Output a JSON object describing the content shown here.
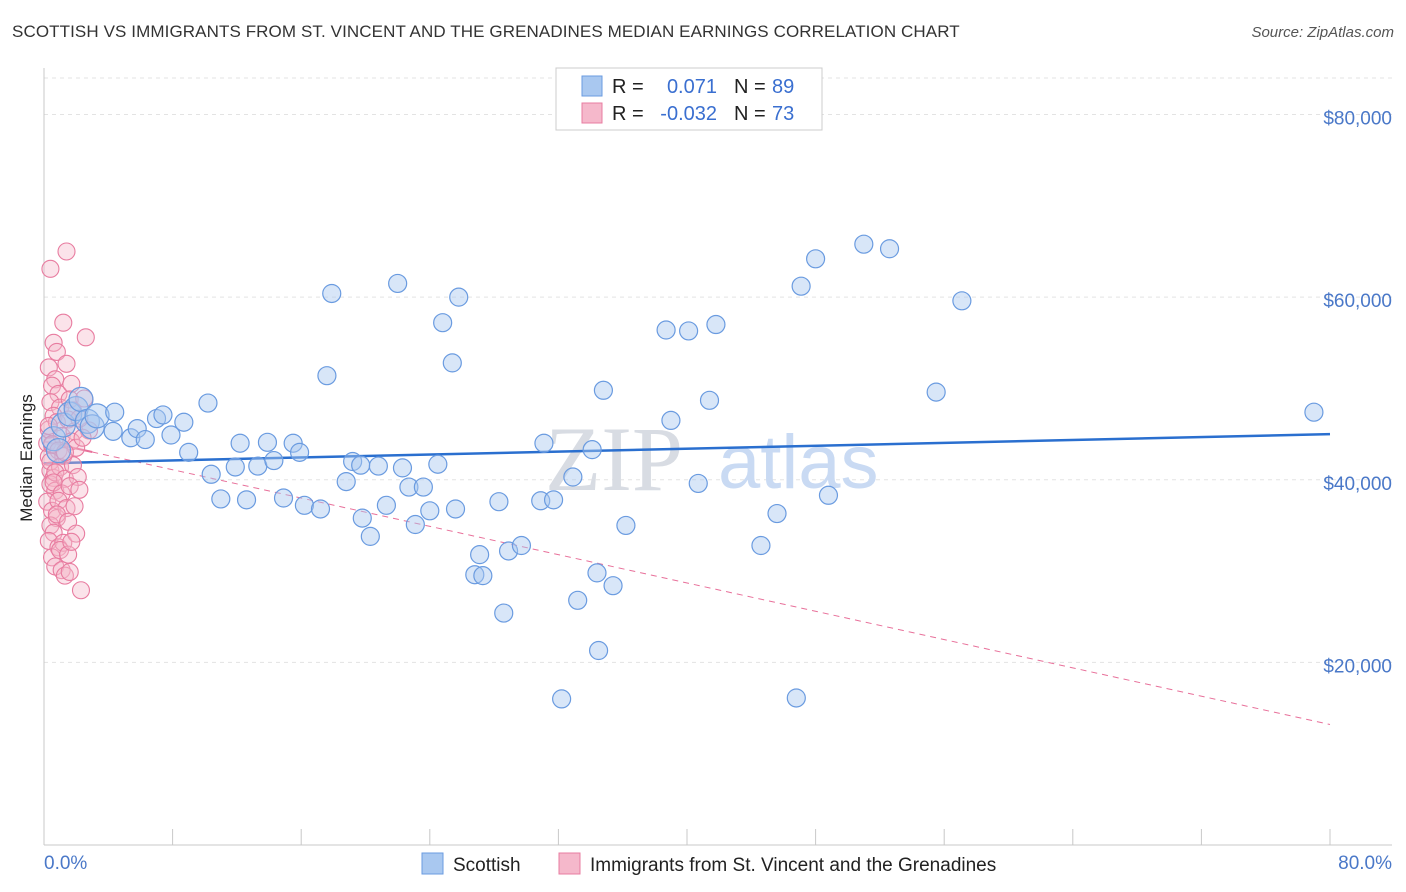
{
  "title": "SCOTTISH VS IMMIGRANTS FROM ST. VINCENT AND THE GRENADINES MEDIAN EARNINGS CORRELATION CHART",
  "source": "Source: ZipAtlas.com",
  "watermark": {
    "zip": "ZIP",
    "atlas": "atlas"
  },
  "legend": {
    "rows": [
      {
        "r_label": "R =",
        "r_value": "0.071",
        "n_label": "N =",
        "n_value": "89",
        "color": "#a9c8f0"
      },
      {
        "r_label": "R =",
        "r_value": "-0.032",
        "n_label": "N =",
        "n_value": "73",
        "color": "#f5b8cb"
      }
    ]
  },
  "bottom_legend": [
    {
      "label": "Scottish",
      "color": "#a9c8f0"
    },
    {
      "label": "Immigrants from St. Vincent and the Grenadines",
      "color": "#f5b8cb"
    }
  ],
  "chart_data": {
    "type": "scatter",
    "title": "SCOTTISH VS IMMIGRANTS FROM ST. VINCENT AND THE GRENADINES MEDIAN EARNINGS CORRELATION CHART",
    "ylabel": "Median Earnings",
    "xlabel": "",
    "xlim": [
      0,
      80
    ],
    "ylim": [
      0,
      84000
    ],
    "x_tick_labels": [
      "0.0%",
      "80.0%"
    ],
    "y_ticks": [
      {
        "value": 20000,
        "label": "$20,000"
      },
      {
        "value": 40000,
        "label": "$40,000"
      },
      {
        "value": 60000,
        "label": "$60,000"
      },
      {
        "value": 80000,
        "label": "$80,000"
      }
    ],
    "grid": true,
    "colors": {
      "scottish": "#6a9be0",
      "scottish_fill": "#a9c8f0",
      "svg": "#e87ca0",
      "svg_fill": "#f5b8cb",
      "trend_blue": "#2a6fcf",
      "trend_pink": "#e8709a",
      "tick_label": "#4a78c8"
    },
    "series": [
      {
        "name": "Scottish",
        "trend": {
          "x": [
            0,
            80
          ],
          "y": [
            41800,
            45000
          ]
        },
        "points": [
          [
            0.6,
            44500
          ],
          [
            0.9,
            43200
          ],
          [
            1.2,
            46000
          ],
          [
            1.6,
            47200
          ],
          [
            2.0,
            47800
          ],
          [
            2.3,
            48800
          ],
          [
            2.7,
            46400
          ],
          [
            3.0,
            45800
          ],
          [
            3.3,
            47000
          ],
          [
            4.4,
            47400
          ],
          [
            4.3,
            45300
          ],
          [
            5.4,
            44600
          ],
          [
            5.8,
            45600
          ],
          [
            6.3,
            44400
          ],
          [
            7.0,
            46700
          ],
          [
            7.9,
            44900
          ],
          [
            8.7,
            46300
          ],
          [
            7.4,
            47100
          ],
          [
            9.0,
            43000
          ],
          [
            10.4,
            40600
          ],
          [
            10.2,
            48400
          ],
          [
            11.0,
            37900
          ],
          [
            11.9,
            41400
          ],
          [
            12.6,
            37800
          ],
          [
            12.2,
            44000
          ],
          [
            13.3,
            41500
          ],
          [
            13.9,
            44100
          ],
          [
            14.3,
            42100
          ],
          [
            14.9,
            38000
          ],
          [
            15.5,
            44000
          ],
          [
            15.9,
            43000
          ],
          [
            16.2,
            37200
          ],
          [
            17.2,
            36800
          ],
          [
            17.6,
            51400
          ],
          [
            17.9,
            60400
          ],
          [
            18.8,
            39800
          ],
          [
            19.2,
            42000
          ],
          [
            19.8,
            35800
          ],
          [
            19.7,
            41600
          ],
          [
            20.3,
            33800
          ],
          [
            20.8,
            41500
          ],
          [
            21.3,
            37200
          ],
          [
            22.3,
            41300
          ],
          [
            22.0,
            61500
          ],
          [
            22.7,
            39200
          ],
          [
            23.1,
            35100
          ],
          [
            23.6,
            39200
          ],
          [
            24.0,
            36600
          ],
          [
            24.5,
            41700
          ],
          [
            24.8,
            57200
          ],
          [
            25.4,
            52800
          ],
          [
            25.6,
            36800
          ],
          [
            25.8,
            60000
          ],
          [
            26.8,
            29600
          ],
          [
            27.1,
            31800
          ],
          [
            27.3,
            29500
          ],
          [
            28.3,
            37600
          ],
          [
            28.6,
            25400
          ],
          [
            28.9,
            32200
          ],
          [
            29.7,
            32800
          ],
          [
            30.9,
            37700
          ],
          [
            31.1,
            44000
          ],
          [
            31.7,
            37800
          ],
          [
            32.9,
            40300
          ],
          [
            32.2,
            16000
          ],
          [
            33.2,
            26800
          ],
          [
            34.1,
            43300
          ],
          [
            34.4,
            29800
          ],
          [
            34.5,
            21300
          ],
          [
            34.8,
            49800
          ],
          [
            35.4,
            28400
          ],
          [
            36.2,
            35000
          ],
          [
            38.7,
            56400
          ],
          [
            39.0,
            46500
          ],
          [
            40.1,
            56300
          ],
          [
            40.7,
            39600
          ],
          [
            41.4,
            48700
          ],
          [
            41.8,
            57000
          ],
          [
            44.6,
            32800
          ],
          [
            45.6,
            36300
          ],
          [
            46.8,
            16100
          ],
          [
            47.1,
            61200
          ],
          [
            48.0,
            64200
          ],
          [
            48.8,
            38300
          ],
          [
            51.0,
            65800
          ],
          [
            52.6,
            65300
          ],
          [
            55.5,
            49600
          ],
          [
            57.1,
            59600
          ],
          [
            79.0,
            47400
          ]
        ]
      },
      {
        "name": "Immigrants from St. Vincent and the Grenadines",
        "trend": {
          "x": [
            0,
            80
          ],
          "y": [
            44200,
            13200
          ]
        },
        "points": [
          [
            0.2,
            44000
          ],
          [
            0.3,
            42500
          ],
          [
            0.4,
            41000
          ],
          [
            0.5,
            43800
          ],
          [
            0.3,
            45500
          ],
          [
            0.6,
            40200
          ],
          [
            0.4,
            39500
          ],
          [
            0.7,
            38800
          ],
          [
            0.2,
            37600
          ],
          [
            0.5,
            36600
          ],
          [
            0.8,
            35800
          ],
          [
            0.4,
            35000
          ],
          [
            0.6,
            34200
          ],
          [
            0.3,
            33300
          ],
          [
            0.9,
            32600
          ],
          [
            0.5,
            31500
          ],
          [
            0.7,
            30500
          ],
          [
            0.4,
            63100
          ],
          [
            0.6,
            55000
          ],
          [
            0.8,
            54000
          ],
          [
            0.3,
            52300
          ],
          [
            0.7,
            51000
          ],
          [
            0.5,
            50300
          ],
          [
            0.9,
            49400
          ],
          [
            0.4,
            48500
          ],
          [
            1.0,
            47900
          ],
          [
            0.6,
            47000
          ],
          [
            0.8,
            46300
          ],
          [
            0.3,
            45900
          ],
          [
            1.1,
            44800
          ],
          [
            0.5,
            43900
          ],
          [
            0.9,
            43200
          ],
          [
            1.2,
            42600
          ],
          [
            0.4,
            42000
          ],
          [
            1.0,
            41400
          ],
          [
            0.7,
            40800
          ],
          [
            1.3,
            40100
          ],
          [
            0.6,
            39700
          ],
          [
            1.1,
            38500
          ],
          [
            0.9,
            37700
          ],
          [
            1.4,
            36900
          ],
          [
            0.8,
            36200
          ],
          [
            1.2,
            33100
          ],
          [
            1.0,
            32300
          ],
          [
            1.5,
            31800
          ],
          [
            1.1,
            30100
          ],
          [
            1.3,
            29500
          ],
          [
            1.6,
            29900
          ],
          [
            1.2,
            57200
          ],
          [
            1.4,
            52700
          ],
          [
            1.7,
            50500
          ],
          [
            1.6,
            48800
          ],
          [
            1.8,
            47600
          ],
          [
            1.5,
            46600
          ],
          [
            1.9,
            45300
          ],
          [
            1.7,
            44200
          ],
          [
            2.0,
            43500
          ],
          [
            1.8,
            41600
          ],
          [
            2.1,
            40300
          ],
          [
            1.6,
            39300
          ],
          [
            2.2,
            38900
          ],
          [
            1.9,
            37100
          ],
          [
            1.5,
            35400
          ],
          [
            2.0,
            34100
          ],
          [
            1.7,
            33200
          ],
          [
            2.3,
            27900
          ],
          [
            1.4,
            65000
          ],
          [
            2.6,
            55600
          ],
          [
            2.8,
            45400
          ],
          [
            2.5,
            48900
          ],
          [
            2.4,
            44600
          ],
          [
            2.2,
            46700
          ],
          [
            1.3,
            43000
          ]
        ]
      }
    ]
  }
}
